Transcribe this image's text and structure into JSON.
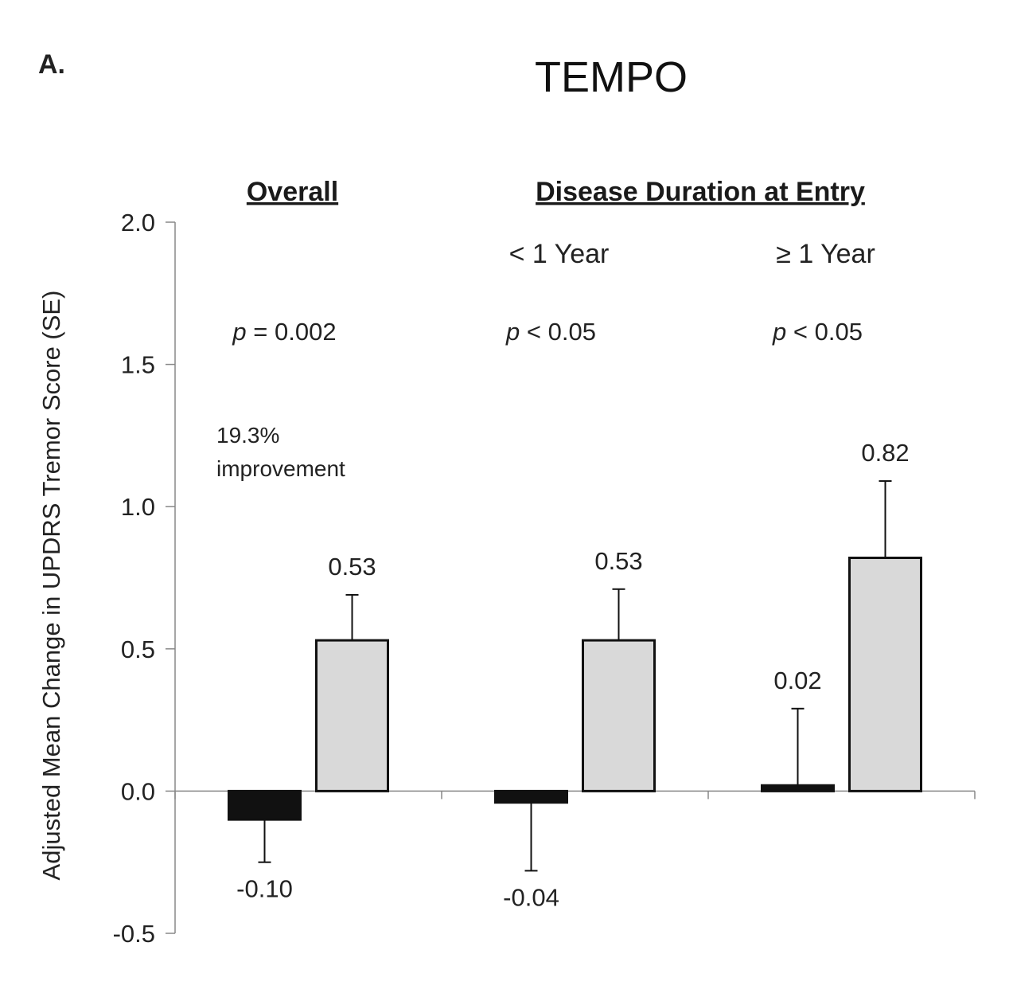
{
  "panel_label": "A.",
  "chart_data": {
    "type": "bar",
    "title": "TEMPO",
    "ylabel": "Adjusted Mean Change in UPDRS Tremor Score (SE)",
    "xlabel": "",
    "ylim": [
      -0.5,
      2.0
    ],
    "yticks": [
      "2.0",
      "1.5",
      "1.0",
      "0.5",
      "0.0",
      "-0.5"
    ],
    "ytick_values": [
      2.0,
      1.5,
      1.0,
      0.5,
      0.0,
      -0.5
    ],
    "grid": false,
    "legend": "none",
    "group_headers": [
      {
        "text": "Overall",
        "groups": [
          0
        ]
      },
      {
        "text": "Disease Duration at Entry",
        "groups": [
          1,
          2
        ]
      }
    ],
    "categories": [
      "",
      "< 1 Year",
      "≥ 1 Year"
    ],
    "p_values": [
      {
        "prefix": "p",
        "rest": " = 0.002"
      },
      {
        "prefix": "p",
        "rest": " < 0.05"
      },
      {
        "prefix": "p",
        "rest": " < 0.05"
      }
    ],
    "annotation": {
      "line1": "19.3%",
      "line2": "improvement"
    },
    "series": [
      {
        "color": "#111111",
        "values": [
          -0.1,
          -0.04,
          0.02
        ],
        "labels": [
          "-0.10",
          "-0.04",
          "0.02"
        ],
        "se": [
          0.15,
          0.24,
          0.27
        ]
      },
      {
        "color": "#d9d9d9",
        "values": [
          0.53,
          0.53,
          0.82
        ],
        "labels": [
          "0.53",
          "0.53",
          "0.82"
        ],
        "se": [
          0.16,
          0.18,
          0.27
        ]
      }
    ]
  }
}
